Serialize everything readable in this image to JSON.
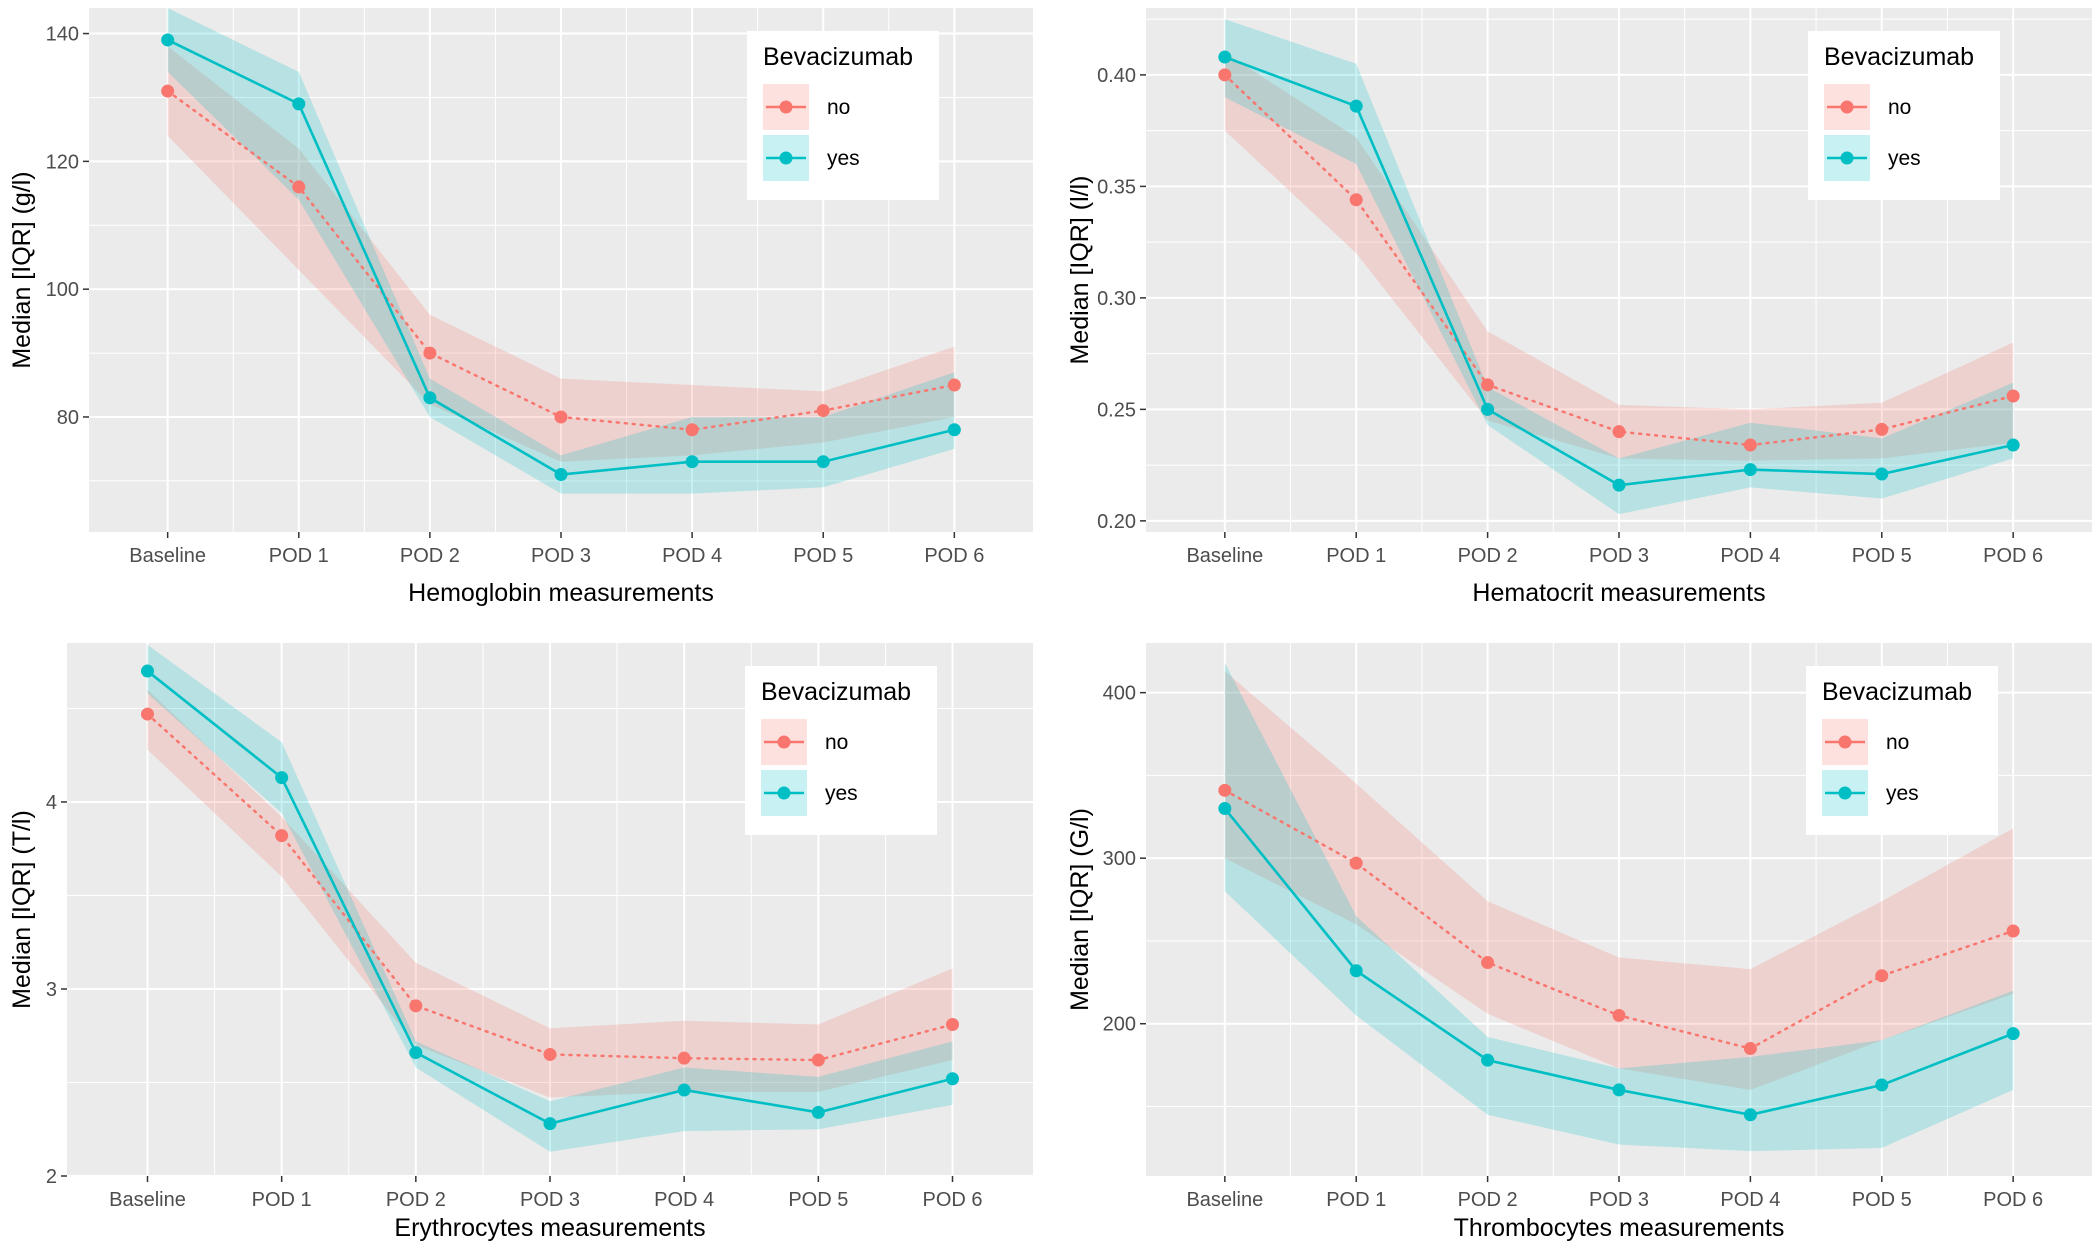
{
  "colors": {
    "no": "#F8766D",
    "yes": "#00BFC4",
    "panel": "#EBEBEB",
    "grid_major": "#FFFFFF"
  },
  "chart_data": [
    {
      "type": "line",
      "title": "",
      "xlabel": "Hemoglobin measurements",
      "ylabel": "Median [IQR] (g/l)",
      "categories": [
        "Baseline",
        "POD 1",
        "POD 2",
        "POD 3",
        "POD 4",
        "POD 5",
        "POD 6"
      ],
      "ylim": [
        62,
        144
      ],
      "yticks": [
        80,
        100,
        120,
        140
      ],
      "legend": {
        "title": "Bevacizumab",
        "position": "top-right"
      },
      "series": [
        {
          "name": "no",
          "line": "dotted",
          "values": [
            131,
            116,
            90,
            80,
            78,
            81,
            85
          ],
          "iqr_low": [
            124,
            103,
            82,
            73,
            74,
            76,
            80
          ],
          "iqr_high": [
            138,
            122,
            96,
            86,
            85,
            84,
            91
          ]
        },
        {
          "name": "yes",
          "line": "solid",
          "values": [
            139,
            129,
            83,
            71,
            73,
            73,
            78
          ],
          "iqr_low": [
            134,
            114,
            80,
            68,
            68,
            69,
            75
          ],
          "iqr_high": [
            144,
            134,
            86,
            74,
            80,
            80,
            87
          ]
        }
      ]
    },
    {
      "type": "line",
      "title": "",
      "xlabel": "Hematocrit measurements",
      "ylabel": "Median [IQR] (l/l)",
      "categories": [
        "Baseline",
        "POD 1",
        "POD 2",
        "POD 3",
        "POD 4",
        "POD 5",
        "POD 6"
      ],
      "ylim": [
        0.195,
        0.43
      ],
      "yticks": [
        0.2,
        0.25,
        0.3,
        0.35,
        0.4
      ],
      "ytick_labels": [
        "0.20",
        "0.25",
        "0.30",
        "0.35",
        "0.40"
      ],
      "legend": {
        "title": "Bevacizumab",
        "position": "top-right"
      },
      "series": [
        {
          "name": "no",
          "line": "dotted",
          "values": [
            0.4,
            0.344,
            0.261,
            0.24,
            0.234,
            0.241,
            0.256
          ],
          "iqr_low": [
            0.375,
            0.32,
            0.245,
            0.228,
            0.227,
            0.228,
            0.235
          ],
          "iqr_high": [
            0.41,
            0.372,
            0.285,
            0.252,
            0.25,
            0.253,
            0.28
          ]
        },
        {
          "name": "yes",
          "line": "solid",
          "values": [
            0.408,
            0.386,
            0.25,
            0.216,
            0.223,
            0.221,
            0.234
          ],
          "iqr_low": [
            0.39,
            0.36,
            0.243,
            0.203,
            0.215,
            0.21,
            0.228
          ],
          "iqr_high": [
            0.425,
            0.405,
            0.26,
            0.228,
            0.244,
            0.237,
            0.262
          ]
        }
      ]
    },
    {
      "type": "line",
      "title": "",
      "xlabel": "Erythrocytes measurements",
      "ylabel": "Median [IQR] (T/l)",
      "categories": [
        "Baseline",
        "POD 1",
        "POD 2",
        "POD 3",
        "POD 4",
        "POD 5",
        "POD 6"
      ],
      "ylim": [
        2.0,
        4.85
      ],
      "yticks": [
        2,
        3,
        4
      ],
      "legend": {
        "title": "Bevacizumab",
        "position": "top-right"
      },
      "series": [
        {
          "name": "no",
          "line": "dotted",
          "values": [
            4.47,
            3.82,
            2.91,
            2.65,
            2.63,
            2.62,
            2.81
          ],
          "iqr_low": [
            4.28,
            3.6,
            2.7,
            2.42,
            2.45,
            2.45,
            2.62
          ],
          "iqr_high": [
            4.6,
            3.92,
            3.14,
            2.79,
            2.83,
            2.81,
            3.11
          ]
        },
        {
          "name": "yes",
          "line": "solid",
          "values": [
            4.7,
            4.13,
            2.66,
            2.28,
            2.46,
            2.34,
            2.52
          ],
          "iqr_low": [
            4.58,
            3.94,
            2.58,
            2.13,
            2.24,
            2.25,
            2.38
          ],
          "iqr_high": [
            4.84,
            4.32,
            2.72,
            2.4,
            2.58,
            2.53,
            2.72
          ]
        }
      ]
    },
    {
      "type": "line",
      "title": "",
      "xlabel": "Thrombocytes measurements",
      "ylabel": "Median [IQR] (G/l)",
      "categories": [
        "Baseline",
        "POD 1",
        "POD 2",
        "POD 3",
        "POD 4",
        "POD 5",
        "POD 6"
      ],
      "ylim": [
        108,
        430
      ],
      "yticks": [
        200,
        300,
        400
      ],
      "legend": {
        "title": "Bevacizumab",
        "position": "top-right"
      },
      "series": [
        {
          "name": "no",
          "line": "dotted",
          "values": [
            341,
            297,
            237,
            205,
            185,
            229,
            256
          ],
          "iqr_low": [
            300,
            260,
            206,
            173,
            160,
            190,
            218
          ],
          "iqr_high": [
            413,
            345,
            274,
            240,
            233,
            274,
            318
          ]
        },
        {
          "name": "yes",
          "line": "solid",
          "values": [
            330,
            232,
            178,
            160,
            145,
            163,
            194
          ],
          "iqr_low": [
            280,
            205,
            145,
            127,
            123,
            125,
            160
          ],
          "iqr_high": [
            418,
            265,
            192,
            173,
            180,
            190,
            220
          ]
        }
      ]
    }
  ]
}
